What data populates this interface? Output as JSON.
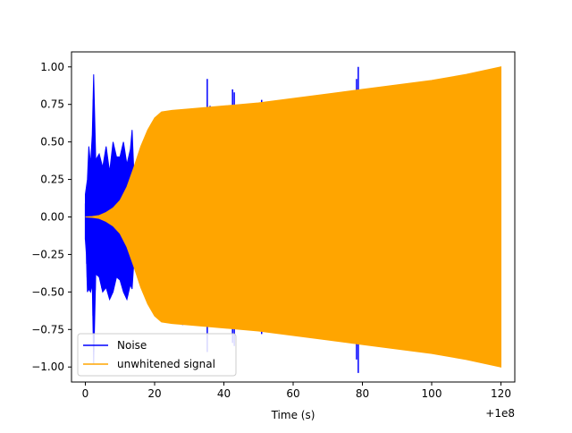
{
  "chart_data": {
    "type": "line",
    "xlabel": "Time (s)",
    "ylabel": "",
    "x_offset_label": "+1e8",
    "xlim": [
      -4,
      124
    ],
    "ylim": [
      -1.1,
      1.1
    ],
    "x_ticks": [
      0,
      20,
      40,
      60,
      80,
      100,
      120
    ],
    "x_tick_labels": [
      "0",
      "20",
      "40",
      "60",
      "80",
      "100",
      "120"
    ],
    "y_ticks": [
      1.0,
      0.75,
      0.5,
      0.25,
      0.0,
      -0.25,
      -0.5,
      -0.75,
      -1.0
    ],
    "y_tick_labels": [
      "1.00",
      "0.75",
      "0.50",
      "0.25",
      "0.00",
      "−0.25",
      "−0.50",
      "−0.75",
      "−1.00"
    ],
    "legend_position": "lower-left",
    "grid": false,
    "series": [
      {
        "name": "Noise",
        "color": "#0000ff",
        "style": "dense oscillation (envelope shown)",
        "x": [
          0,
          0.3,
          0.6,
          1.0,
          1.5,
          2.0,
          2.4,
          3.0,
          4.0,
          5.0,
          6.0,
          7.0,
          8.0,
          9.0,
          10.0,
          11.0,
          12.0,
          13.0,
          13.5,
          14.0,
          15.0,
          16.0,
          17.0,
          18.0,
          19.0,
          20.0
        ],
        "upper": [
          0.15,
          0.2,
          0.25,
          0.47,
          0.35,
          0.55,
          0.95,
          0.38,
          0.42,
          0.33,
          0.47,
          0.3,
          0.5,
          0.4,
          0.4,
          0.5,
          0.35,
          0.45,
          0.58,
          0.3,
          0.25,
          0.15,
          0.1,
          0.07,
          0.05,
          0.04
        ],
        "lower": [
          -0.15,
          -0.25,
          -0.5,
          -0.48,
          -0.5,
          -0.45,
          -0.98,
          -0.38,
          -0.4,
          -0.5,
          -0.47,
          -0.55,
          -0.5,
          -0.4,
          -0.42,
          -0.5,
          -0.55,
          -0.45,
          -0.48,
          -0.3,
          -0.25,
          -0.15,
          -0.1,
          -0.07,
          -0.05,
          -0.04
        ],
        "spikes": [
          {
            "x": 27.3,
            "top": 0.63,
            "bottom": -0.69
          },
          {
            "x": 28.1,
            "top": 0.69,
            "bottom": -0.72
          },
          {
            "x": 30.0,
            "top": 0.72,
            "bottom": -0.72
          },
          {
            "x": 35.2,
            "top": 0.92,
            "bottom": -0.9
          },
          {
            "x": 36.0,
            "top": 0.74,
            "bottom": -0.73
          },
          {
            "x": 42.5,
            "top": 0.85,
            "bottom": -0.84
          },
          {
            "x": 43.0,
            "top": 0.83,
            "bottom": -0.86
          },
          {
            "x": 50.3,
            "top": 0.76,
            "bottom": -0.74
          },
          {
            "x": 50.9,
            "top": 0.78,
            "bottom": -0.78
          },
          {
            "x": 78.3,
            "top": 0.92,
            "bottom": -0.95
          },
          {
            "x": 78.8,
            "top": 1.0,
            "bottom": -1.04
          }
        ]
      },
      {
        "name": "unwhitened signal",
        "color": "#ffa500",
        "style": "dense oscillation (envelope shown)",
        "x": [
          0,
          2,
          4,
          6,
          8,
          10,
          12,
          14,
          16,
          18,
          19,
          20,
          22,
          25,
          30,
          40,
          50,
          60,
          70,
          80,
          90,
          100,
          110,
          120
        ],
        "upper": [
          0.0,
          0.003,
          0.01,
          0.03,
          0.06,
          0.11,
          0.2,
          0.33,
          0.47,
          0.58,
          0.62,
          0.66,
          0.7,
          0.71,
          0.72,
          0.74,
          0.76,
          0.79,
          0.82,
          0.85,
          0.88,
          0.91,
          0.95,
          1.0
        ],
        "lower": [
          0.0,
          -0.003,
          -0.01,
          -0.03,
          -0.06,
          -0.11,
          -0.2,
          -0.33,
          -0.47,
          -0.58,
          -0.62,
          -0.66,
          -0.7,
          -0.71,
          -0.72,
          -0.74,
          -0.76,
          -0.79,
          -0.82,
          -0.85,
          -0.88,
          -0.91,
          -0.95,
          -1.0
        ]
      }
    ]
  }
}
